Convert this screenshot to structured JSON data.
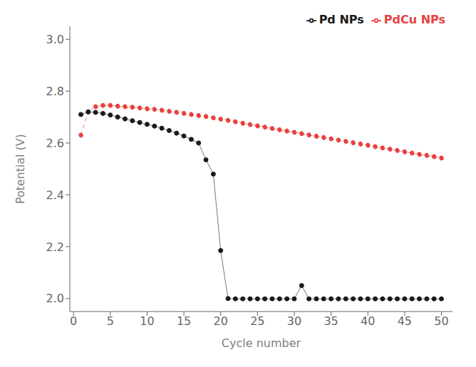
{
  "chart_data": {
    "type": "line",
    "xlabel": "Cycle number",
    "ylabel": "Potential (V)",
    "x": [
      1,
      2,
      3,
      4,
      5,
      6,
      7,
      8,
      9,
      10,
      11,
      12,
      13,
      14,
      15,
      16,
      17,
      18,
      19,
      20,
      21,
      22,
      23,
      24,
      25,
      26,
      27,
      28,
      29,
      30,
      31,
      32,
      33,
      34,
      35,
      36,
      37,
      38,
      39,
      40,
      41,
      42,
      43,
      44,
      45,
      46,
      47,
      48,
      49,
      50
    ],
    "series": [
      {
        "name": "PdCu NPs",
        "color": "#e84040",
        "marker": "circle",
        "line_style": "dashed",
        "values": [
          2.63,
          2.72,
          2.74,
          2.745,
          2.745,
          2.742,
          2.74,
          2.738,
          2.735,
          2.732,
          2.73,
          2.726,
          2.722,
          2.718,
          2.714,
          2.71,
          2.706,
          2.702,
          2.697,
          2.692,
          2.687,
          2.682,
          2.676,
          2.671,
          2.666,
          2.661,
          2.656,
          2.651,
          2.646,
          2.641,
          2.636,
          2.631,
          2.626,
          2.621,
          2.616,
          2.611,
          2.606,
          2.601,
          2.596,
          2.591,
          2.586,
          2.581,
          2.576,
          2.571,
          2.566,
          2.561,
          2.556,
          2.552,
          2.547,
          2.542
        ]
      },
      {
        "name": "Pd NPs",
        "color": "#1a1a1a",
        "marker": "circle",
        "line_style": "solid",
        "values": [
          2.71,
          2.72,
          2.718,
          2.714,
          2.708,
          2.7,
          2.693,
          2.686,
          2.679,
          2.672,
          2.665,
          2.657,
          2.648,
          2.638,
          2.627,
          2.614,
          2.6,
          2.535,
          2.48,
          2.185,
          2.0,
          1.999,
          1.999,
          1.999,
          1.999,
          1.999,
          1.999,
          1.999,
          1.999,
          1.999,
          2.05,
          1.999,
          1.999,
          1.999,
          1.999,
          1.999,
          1.999,
          1.999,
          1.999,
          1.999,
          1.999,
          1.999,
          1.999,
          1.999,
          1.999,
          1.999,
          1.999,
          1.999,
          1.999,
          1.999
        ]
      }
    ],
    "xlim": [
      -0.5,
      51.5
    ],
    "ylim": [
      1.95,
      3.05
    ],
    "xticks": [
      0,
      5,
      10,
      15,
      20,
      25,
      30,
      35,
      40,
      45,
      50
    ],
    "yticks": [
      {
        "value": 2.0,
        "label": "2.0"
      },
      2.2,
      2.4,
      2.6,
      2.8,
      {
        "value": 3.0,
        "label": "3.0"
      }
    ],
    "grid": false,
    "legend": "upper right"
  }
}
